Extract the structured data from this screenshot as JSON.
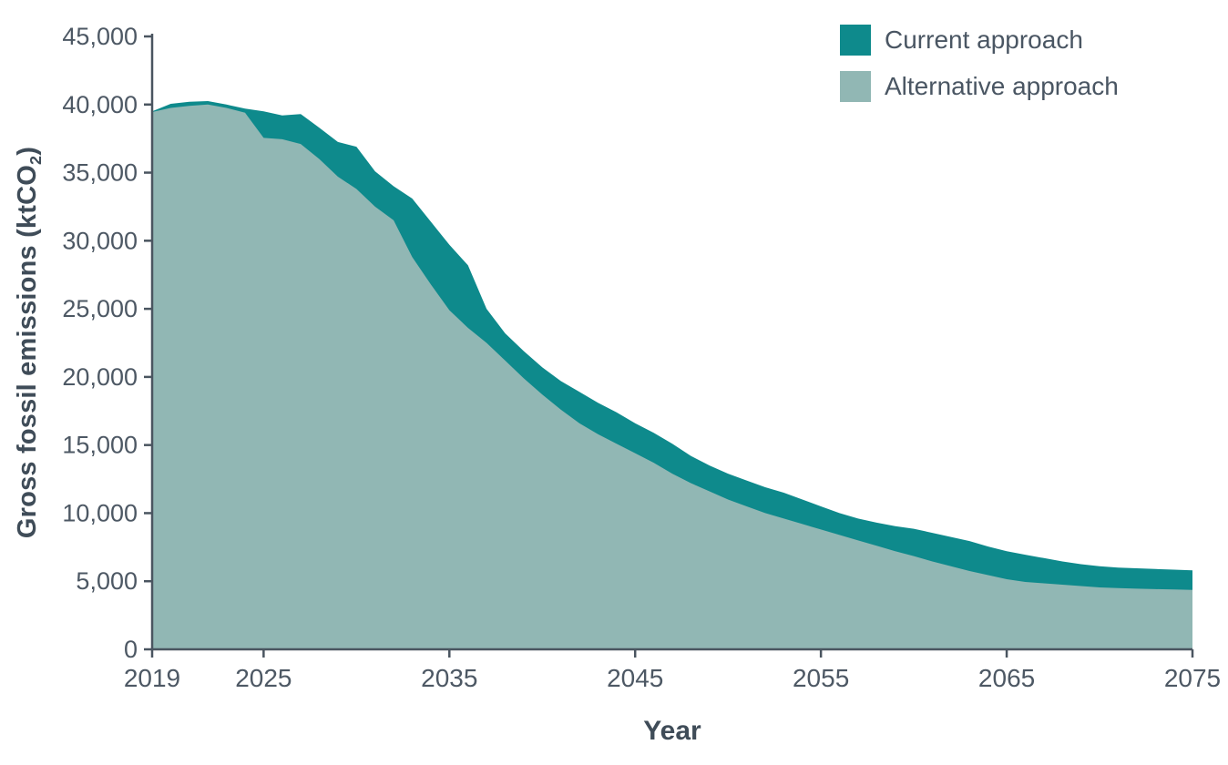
{
  "chart_data": {
    "type": "area",
    "title": "",
    "xlabel": "Year",
    "ylabel": "Gross fossil emissions (ktCO2)",
    "ylabel_parts": {
      "pre": "Gross fossil emissions (ktCO",
      "sub": "2",
      "post": ")"
    },
    "xlim": [
      2019,
      2075
    ],
    "ylim": [
      0,
      45000
    ],
    "grid": false,
    "legend_position": "top-right",
    "axis_color": "#4a5560",
    "tick_label_color": "#4d5864",
    "x_ticks": [
      2019,
      2025,
      2035,
      2045,
      2055,
      2065,
      2075
    ],
    "x_tick_labels": [
      "2019",
      "2025",
      "2035",
      "2045",
      "2055",
      "2065",
      "2075"
    ],
    "y_ticks": [
      0,
      5000,
      10000,
      15000,
      20000,
      25000,
      30000,
      35000,
      40000,
      45000
    ],
    "y_tick_labels": [
      "0",
      "5,000",
      "10,000",
      "15,000",
      "20,000",
      "25,000",
      "30,000",
      "35,000",
      "40,000",
      "45,000"
    ],
    "x": [
      2019,
      2020,
      2021,
      2022,
      2023,
      2024,
      2025,
      2026,
      2027,
      2028,
      2029,
      2030,
      2031,
      2032,
      2033,
      2034,
      2035,
      2036,
      2037,
      2038,
      2039,
      2040,
      2041,
      2042,
      2043,
      2044,
      2045,
      2046,
      2047,
      2048,
      2049,
      2050,
      2051,
      2052,
      2053,
      2054,
      2055,
      2056,
      2057,
      2058,
      2059,
      2060,
      2061,
      2062,
      2063,
      2064,
      2065,
      2066,
      2067,
      2068,
      2069,
      2070,
      2071,
      2072,
      2073,
      2074,
      2075
    ],
    "series": [
      {
        "name": "Current approach",
        "color": "#0E8A8C",
        "values": [
          39500,
          40050,
          40200,
          40250,
          40000,
          39700,
          39500,
          39200,
          39300,
          38300,
          37250,
          36900,
          35100,
          34000,
          33100,
          31400,
          29700,
          28200,
          25000,
          23200,
          21900,
          20700,
          19700,
          18900,
          18100,
          17400,
          16600,
          15900,
          15100,
          14200,
          13500,
          12900,
          12400,
          11900,
          11500,
          11000,
          10500,
          10000,
          9600,
          9300,
          9050,
          8850,
          8550,
          8250,
          7950,
          7550,
          7200,
          6950,
          6700,
          6450,
          6250,
          6100,
          6000,
          5950,
          5900,
          5850,
          5800
        ]
      },
      {
        "name": "Alternative approach",
        "color": "#91B7B4",
        "values": [
          39450,
          39750,
          39900,
          40000,
          39750,
          39400,
          37550,
          37450,
          37100,
          36000,
          34700,
          33800,
          32500,
          31500,
          28800,
          26800,
          24900,
          23600,
          22500,
          21200,
          19900,
          18700,
          17600,
          16600,
          15800,
          15100,
          14400,
          13700,
          12900,
          12200,
          11600,
          11000,
          10500,
          10000,
          9600,
          9200,
          8800,
          8400,
          8000,
          7600,
          7200,
          6850,
          6450,
          6100,
          5750,
          5450,
          5150,
          4950,
          4850,
          4750,
          4650,
          4550,
          4500,
          4450,
          4420,
          4390,
          4360
        ]
      }
    ]
  }
}
